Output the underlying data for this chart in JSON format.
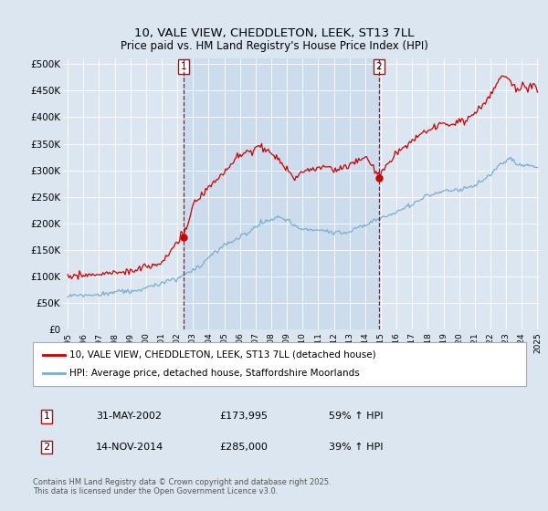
{
  "title": "10, VALE VIEW, CHEDDLETON, LEEK, ST13 7LL",
  "subtitle": "Price paid vs. HM Land Registry's House Price Index (HPI)",
  "background_color": "#dce6f1",
  "plot_bg_color": "#dce6f1",
  "yticks": [
    0,
    50000,
    100000,
    150000,
    200000,
    250000,
    300000,
    350000,
    400000,
    450000,
    500000
  ],
  "ytick_labels": [
    "£0",
    "£50K",
    "£100K",
    "£150K",
    "£200K",
    "£250K",
    "£300K",
    "£350K",
    "£400K",
    "£450K",
    "£500K"
  ],
  "xmin_year": 1995,
  "xmax_year": 2025,
  "xticks": [
    1995,
    1996,
    1997,
    1998,
    1999,
    2000,
    2001,
    2002,
    2003,
    2004,
    2005,
    2006,
    2007,
    2008,
    2009,
    2010,
    2011,
    2012,
    2013,
    2014,
    2015,
    2016,
    2017,
    2018,
    2019,
    2020,
    2021,
    2022,
    2023,
    2024,
    2025
  ],
  "sale1_date_year": 2002.41,
  "sale1_price": 173995,
  "sale2_date_year": 2014.87,
  "sale2_price": 285000,
  "red_line_color": "#cc0000",
  "blue_line_color": "#7aadcf",
  "shade_color": "#c8d8eb",
  "vline_color": "#cc0000",
  "legend_label_red": "10, VALE VIEW, CHEDDLETON, LEEK, ST13 7LL (detached house)",
  "legend_label_blue": "HPI: Average price, detached house, Staffordshire Moorlands",
  "transaction1_date": "31-MAY-2002",
  "transaction1_price": "£173,995",
  "transaction1_hpi": "59% ↑ HPI",
  "transaction2_date": "14-NOV-2014",
  "transaction2_price": "£285,000",
  "transaction2_hpi": "39% ↑ HPI",
  "footnote": "Contains HM Land Registry data © Crown copyright and database right 2025.\nThis data is licensed under the Open Government Licence v3.0."
}
